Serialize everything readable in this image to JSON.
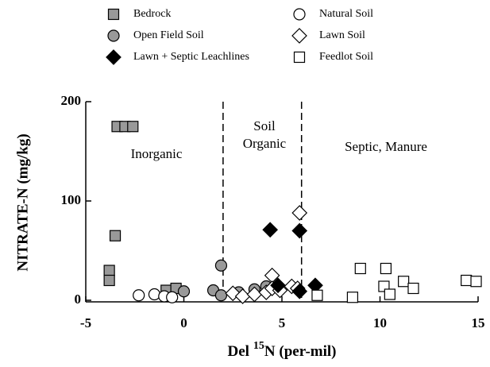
{
  "chart_data": {
    "type": "scatter",
    "xlabel": {
      "text": "Del",
      "superscript": "15",
      "suffix": "N (per-mil)"
    },
    "ylabel": "NITRATE-N (mg/kg)",
    "xlim": [
      -5,
      15
    ],
    "xticks": [
      -5,
      0,
      5,
      10,
      15
    ],
    "ylim": [
      0,
      200
    ],
    "yticks": [
      0,
      100,
      200
    ],
    "vlines": [
      2,
      6
    ],
    "annotations": [
      "Inorganic",
      "Soil",
      "Organic",
      "Septic, Manure"
    ],
    "series": [
      {
        "name": "Bedrock",
        "marker": "square",
        "color": "#999999",
        "x": [
          -3.4,
          -3.0,
          -2.6,
          -3.5,
          -3.8,
          -3.8,
          -0.9,
          -0.4
        ],
        "values": [
          175,
          175,
          175,
          65,
          30,
          20,
          10,
          12
        ]
      },
      {
        "name": "Natural Soil",
        "marker": "circle",
        "color": "#ffffff",
        "x": [
          -2.3,
          -1.5,
          -1.0,
          -0.6
        ],
        "values": [
          5,
          6,
          4,
          3
        ]
      },
      {
        "name": "Open Field Soil",
        "marker": "circle",
        "color": "#999999",
        "x": [
          0.0,
          1.5,
          1.9,
          1.9,
          2.8,
          3.6,
          4.2
        ],
        "values": [
          9,
          10,
          35,
          5,
          8,
          11,
          14
        ]
      },
      {
        "name": "Lawn Soil",
        "marker": "diamond",
        "color": "#ffffff",
        "x": [
          2.5,
          3.0,
          3.6,
          4.2,
          4.5,
          4.5,
          4.9,
          5.5,
          5.8,
          5.9
        ],
        "values": [
          7,
          4,
          6,
          8,
          25,
          12,
          10,
          14,
          12,
          88
        ]
      },
      {
        "name": "Lawn + Septic Leachlines",
        "marker": "diamond",
        "color": "#000000",
        "x": [
          4.4,
          4.8,
          5.9,
          5.9,
          6.7
        ],
        "values": [
          71,
          15,
          70,
          9,
          15
        ]
      },
      {
        "name": "Feedlot Soil",
        "marker": "square",
        "color": "#ffffff",
        "x": [
          6.8,
          8.6,
          9.0,
          10.3,
          10.2,
          10.5,
          11.2,
          11.7,
          14.4,
          14.9
        ],
        "values": [
          5,
          3,
          32,
          32,
          14,
          6,
          19,
          12,
          20,
          19
        ]
      }
    ]
  }
}
